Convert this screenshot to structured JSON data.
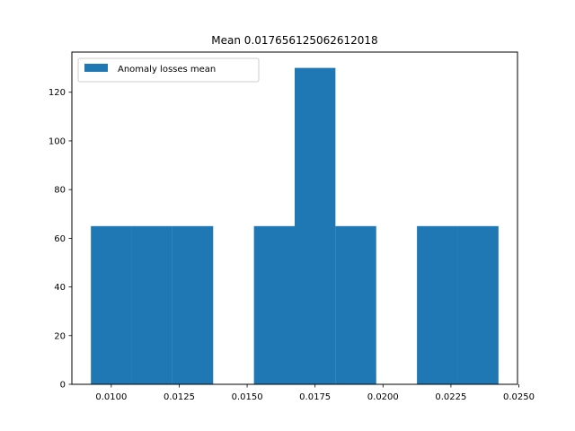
{
  "chart_data": {
    "type": "bar",
    "title": "Mean 0.017656125062612018",
    "xlabel": "",
    "ylabel": "",
    "legend": {
      "label": "Anomaly losses mean",
      "placement": "top-left"
    },
    "bar_color": "#1f77b4",
    "bins": [
      {
        "x0": 0.00925,
        "x1": 0.01075,
        "value": 65
      },
      {
        "x0": 0.01075,
        "x1": 0.01225,
        "value": 65
      },
      {
        "x0": 0.01225,
        "x1": 0.01375,
        "value": 65
      },
      {
        "x0": 0.01375,
        "x1": 0.01525,
        "value": 0
      },
      {
        "x0": 0.01525,
        "x1": 0.01675,
        "value": 65
      },
      {
        "x0": 0.01675,
        "x1": 0.01825,
        "value": 130
      },
      {
        "x0": 0.01825,
        "x1": 0.01975,
        "value": 65
      },
      {
        "x0": 0.01975,
        "x1": 0.02125,
        "value": 0
      },
      {
        "x0": 0.02125,
        "x1": 0.02275,
        "value": 65
      },
      {
        "x0": 0.02275,
        "x1": 0.02425,
        "value": 65
      }
    ],
    "xlim": [
      0.00855,
      0.02495
    ],
    "ylim": [
      0,
      136.5
    ],
    "xticks": [
      0.01,
      0.0125,
      0.015,
      0.0175,
      0.02,
      0.0225,
      0.025
    ],
    "xtick_labels": [
      "0.0100",
      "0.0125",
      "0.0150",
      "0.0175",
      "0.0200",
      "0.0225",
      "0.0250"
    ],
    "yticks": [
      0,
      20,
      40,
      60,
      80,
      100,
      120
    ],
    "ytick_labels": [
      "0",
      "20",
      "40",
      "60",
      "80",
      "100",
      "120"
    ],
    "grid": false
  }
}
